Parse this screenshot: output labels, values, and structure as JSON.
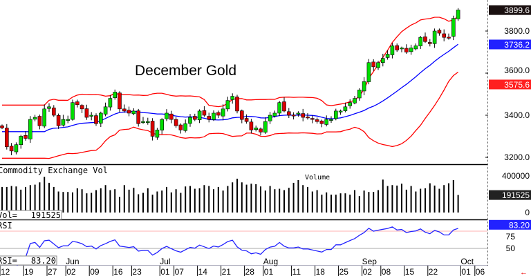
{
  "chart_data": {
    "type": "candlestick",
    "title": "December Gold",
    "price_axis": {
      "ticks": [
        "3800.0",
        "3600.0",
        "3400.0",
        "3200.0"
      ],
      "tick_values": [
        3800,
        3600,
        3400,
        3200
      ],
      "range": [
        3150,
        3950
      ]
    },
    "last_price_label": "3899.6",
    "sma_label": "3736.2",
    "lower_band_label": "3575.6",
    "closes": [
      3340,
      3250,
      3230,
      3260,
      3300,
      3290,
      3380,
      3390,
      3350,
      3430,
      3440,
      3400,
      3350,
      3380,
      3380,
      3460,
      3450,
      3430,
      3390,
      3400,
      3360,
      3410,
      3440,
      3480,
      3510,
      3430,
      3420,
      3410,
      3420,
      3360,
      3370,
      3370,
      3300,
      3330,
      3380,
      3410,
      3380,
      3350,
      3330,
      3360,
      3390,
      3380,
      3420,
      3400,
      3380,
      3410,
      3400,
      3430,
      3470,
      3490,
      3420,
      3380,
      3370,
      3330,
      3340,
      3320,
      3370,
      3400,
      3410,
      3460,
      3420,
      3400,
      3400,
      3410,
      3390,
      3390,
      3380,
      3370,
      3360,
      3380,
      3380,
      3420,
      3420,
      3440,
      3460,
      3480,
      3520,
      3560,
      3650,
      3630,
      3650,
      3670,
      3690,
      3730,
      3710,
      3720,
      3700,
      3720,
      3730,
      3770,
      3750,
      3740,
      3800,
      3790,
      3770,
      3770,
      3860,
      3900
    ],
    "bollinger": {
      "period": 20,
      "std": 2
    },
    "volume": {
      "title": "Commodity Exchange Vol",
      "legend": "Volume",
      "readout_label": "Vol=",
      "readout_value": "191525",
      "axis_ticks": [
        "400000",
        "0"
      ],
      "axis_values": [
        400000,
        0
      ],
      "last_label": "191525",
      "values_thousands": [
        280,
        280,
        290,
        285,
        250,
        280,
        300,
        305,
        330,
        390,
        325,
        280,
        230,
        225,
        225,
        220,
        265,
        255,
        210,
        215,
        245,
        265,
        300,
        245,
        255,
        170,
        300,
        250,
        270,
        200,
        215,
        265,
        195,
        230,
        240,
        280,
        220,
        255,
        215,
        285,
        290,
        260,
        265,
        300,
        290,
        255,
        280,
        240,
        290,
        330,
        370,
        330,
        305,
        315,
        310,
        285,
        240,
        290,
        255,
        260,
        245,
        270,
        325,
        355,
        300,
        280,
        230,
        245,
        195,
        220,
        195,
        195,
        210,
        210,
        195,
        245,
        180,
        240,
        225,
        225,
        245,
        360,
        290,
        300,
        295,
        315,
        250,
        290,
        230,
        260,
        265,
        320,
        295,
        260,
        300,
        320,
        355,
        192
      ]
    },
    "rsi": {
      "title": "RSI",
      "readout_label": "RSI=",
      "readout_value": "83.20",
      "axis_ticks": [
        "75",
        "50"
      ],
      "axis_values": [
        75,
        50
      ],
      "last_label": "83.20",
      "period": 14
    },
    "x_axis": {
      "day_ticks": [
        {
          "label": "12",
          "bar": 0
        },
        {
          "label": "19",
          "bar": 5
        },
        {
          "label": "27",
          "bar": 10
        },
        {
          "label": "02",
          "bar": 14
        },
        {
          "label": "09",
          "bar": 19
        },
        {
          "label": "16",
          "bar": 24
        },
        {
          "label": "23",
          "bar": 28
        },
        {
          "label": "01",
          "bar": 34
        },
        {
          "label": "07",
          "bar": 37
        },
        {
          "label": "14",
          "bar": 42
        },
        {
          "label": "21",
          "bar": 47
        },
        {
          "label": "28",
          "bar": 52
        },
        {
          "label": "01",
          "bar": 56
        },
        {
          "label": "11",
          "bar": 62
        },
        {
          "label": "18",
          "bar": 67
        },
        {
          "label": "25",
          "bar": 72
        },
        {
          "label": "02",
          "bar": 77
        },
        {
          "label": "08",
          "bar": 81
        },
        {
          "label": "15",
          "bar": 86
        },
        {
          "label": "22",
          "bar": 91
        },
        {
          "label": "01",
          "bar": 98
        },
        {
          "label": "06",
          "bar": 101
        }
      ],
      "month_labels": [
        {
          "label": "Jun",
          "bar": 14
        },
        {
          "label": "Jul",
          "bar": 34
        },
        {
          "label": "Aug",
          "bar": 56
        },
        {
          "label": "Sep",
          "bar": 77
        },
        {
          "label": "Oct",
          "bar": 98
        }
      ]
    },
    "colors": {
      "up": "#00dd00",
      "down": "#dd0000",
      "band": "#ff0000",
      "sma": "#0000ff",
      "rsi": "#2222ff",
      "last_bg": "#1a1010",
      "sma_bg": "#2222ff",
      "lower_bg": "#ff2020"
    }
  }
}
